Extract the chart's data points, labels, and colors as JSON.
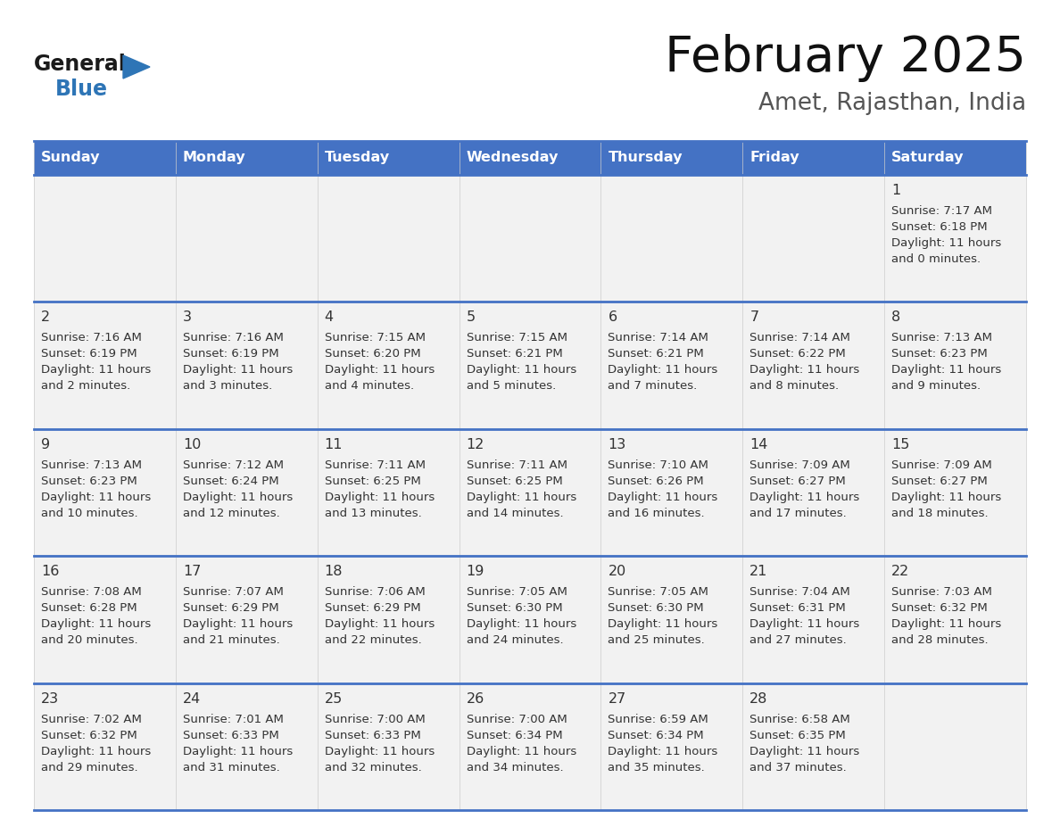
{
  "title": "February 2025",
  "subtitle": "Amet, Rajasthan, India",
  "header_bg": "#4472C4",
  "header_text_color": "#FFFFFF",
  "cell_bg": "#F2F2F2",
  "border_color": "#4472C4",
  "text_color": "#333333",
  "day_names": [
    "Sunday",
    "Monday",
    "Tuesday",
    "Wednesday",
    "Thursday",
    "Friday",
    "Saturday"
  ],
  "days": [
    {
      "day": 1,
      "col": 6,
      "row": 0,
      "sunrise": "7:17 AM",
      "sunset": "6:18 PM",
      "daylight_a": "11 hours",
      "daylight_b": "and 0 minutes."
    },
    {
      "day": 2,
      "col": 0,
      "row": 1,
      "sunrise": "7:16 AM",
      "sunset": "6:19 PM",
      "daylight_a": "11 hours",
      "daylight_b": "and 2 minutes."
    },
    {
      "day": 3,
      "col": 1,
      "row": 1,
      "sunrise": "7:16 AM",
      "sunset": "6:19 PM",
      "daylight_a": "11 hours",
      "daylight_b": "and 3 minutes."
    },
    {
      "day": 4,
      "col": 2,
      "row": 1,
      "sunrise": "7:15 AM",
      "sunset": "6:20 PM",
      "daylight_a": "11 hours",
      "daylight_b": "and 4 minutes."
    },
    {
      "day": 5,
      "col": 3,
      "row": 1,
      "sunrise": "7:15 AM",
      "sunset": "6:21 PM",
      "daylight_a": "11 hours",
      "daylight_b": "and 5 minutes."
    },
    {
      "day": 6,
      "col": 4,
      "row": 1,
      "sunrise": "7:14 AM",
      "sunset": "6:21 PM",
      "daylight_a": "11 hours",
      "daylight_b": "and 7 minutes."
    },
    {
      "day": 7,
      "col": 5,
      "row": 1,
      "sunrise": "7:14 AM",
      "sunset": "6:22 PM",
      "daylight_a": "11 hours",
      "daylight_b": "and 8 minutes."
    },
    {
      "day": 8,
      "col": 6,
      "row": 1,
      "sunrise": "7:13 AM",
      "sunset": "6:23 PM",
      "daylight_a": "11 hours",
      "daylight_b": "and 9 minutes."
    },
    {
      "day": 9,
      "col": 0,
      "row": 2,
      "sunrise": "7:13 AM",
      "sunset": "6:23 PM",
      "daylight_a": "11 hours",
      "daylight_b": "and 10 minutes."
    },
    {
      "day": 10,
      "col": 1,
      "row": 2,
      "sunrise": "7:12 AM",
      "sunset": "6:24 PM",
      "daylight_a": "11 hours",
      "daylight_b": "and 12 minutes."
    },
    {
      "day": 11,
      "col": 2,
      "row": 2,
      "sunrise": "7:11 AM",
      "sunset": "6:25 PM",
      "daylight_a": "11 hours",
      "daylight_b": "and 13 minutes."
    },
    {
      "day": 12,
      "col": 3,
      "row": 2,
      "sunrise": "7:11 AM",
      "sunset": "6:25 PM",
      "daylight_a": "11 hours",
      "daylight_b": "and 14 minutes."
    },
    {
      "day": 13,
      "col": 4,
      "row": 2,
      "sunrise": "7:10 AM",
      "sunset": "6:26 PM",
      "daylight_a": "11 hours",
      "daylight_b": "and 16 minutes."
    },
    {
      "day": 14,
      "col": 5,
      "row": 2,
      "sunrise": "7:09 AM",
      "sunset": "6:27 PM",
      "daylight_a": "11 hours",
      "daylight_b": "and 17 minutes."
    },
    {
      "day": 15,
      "col": 6,
      "row": 2,
      "sunrise": "7:09 AM",
      "sunset": "6:27 PM",
      "daylight_a": "11 hours",
      "daylight_b": "and 18 minutes."
    },
    {
      "day": 16,
      "col": 0,
      "row": 3,
      "sunrise": "7:08 AM",
      "sunset": "6:28 PM",
      "daylight_a": "11 hours",
      "daylight_b": "and 20 minutes."
    },
    {
      "day": 17,
      "col": 1,
      "row": 3,
      "sunrise": "7:07 AM",
      "sunset": "6:29 PM",
      "daylight_a": "11 hours",
      "daylight_b": "and 21 minutes."
    },
    {
      "day": 18,
      "col": 2,
      "row": 3,
      "sunrise": "7:06 AM",
      "sunset": "6:29 PM",
      "daylight_a": "11 hours",
      "daylight_b": "and 22 minutes."
    },
    {
      "day": 19,
      "col": 3,
      "row": 3,
      "sunrise": "7:05 AM",
      "sunset": "6:30 PM",
      "daylight_a": "11 hours",
      "daylight_b": "and 24 minutes."
    },
    {
      "day": 20,
      "col": 4,
      "row": 3,
      "sunrise": "7:05 AM",
      "sunset": "6:30 PM",
      "daylight_a": "11 hours",
      "daylight_b": "and 25 minutes."
    },
    {
      "day": 21,
      "col": 5,
      "row": 3,
      "sunrise": "7:04 AM",
      "sunset": "6:31 PM",
      "daylight_a": "11 hours",
      "daylight_b": "and 27 minutes."
    },
    {
      "day": 22,
      "col": 6,
      "row": 3,
      "sunrise": "7:03 AM",
      "sunset": "6:32 PM",
      "daylight_a": "11 hours",
      "daylight_b": "and 28 minutes."
    },
    {
      "day": 23,
      "col": 0,
      "row": 4,
      "sunrise": "7:02 AM",
      "sunset": "6:32 PM",
      "daylight_a": "11 hours",
      "daylight_b": "and 29 minutes."
    },
    {
      "day": 24,
      "col": 1,
      "row": 4,
      "sunrise": "7:01 AM",
      "sunset": "6:33 PM",
      "daylight_a": "11 hours",
      "daylight_b": "and 31 minutes."
    },
    {
      "day": 25,
      "col": 2,
      "row": 4,
      "sunrise": "7:00 AM",
      "sunset": "6:33 PM",
      "daylight_a": "11 hours",
      "daylight_b": "and 32 minutes."
    },
    {
      "day": 26,
      "col": 3,
      "row": 4,
      "sunrise": "7:00 AM",
      "sunset": "6:34 PM",
      "daylight_a": "11 hours",
      "daylight_b": "and 34 minutes."
    },
    {
      "day": 27,
      "col": 4,
      "row": 4,
      "sunrise": "6:59 AM",
      "sunset": "6:34 PM",
      "daylight_a": "11 hours",
      "daylight_b": "and 35 minutes."
    },
    {
      "day": 28,
      "col": 5,
      "row": 4,
      "sunrise": "6:58 AM",
      "sunset": "6:35 PM",
      "daylight_a": "11 hours",
      "daylight_b": "and 37 minutes."
    }
  ],
  "logo_text1": "General",
  "logo_text2": "Blue",
  "logo_color1": "#1a1a1a",
  "logo_color2": "#2E75B6",
  "logo_triangle_color": "#2E75B6",
  "fig_width": 11.88,
  "fig_height": 9.18,
  "dpi": 100
}
